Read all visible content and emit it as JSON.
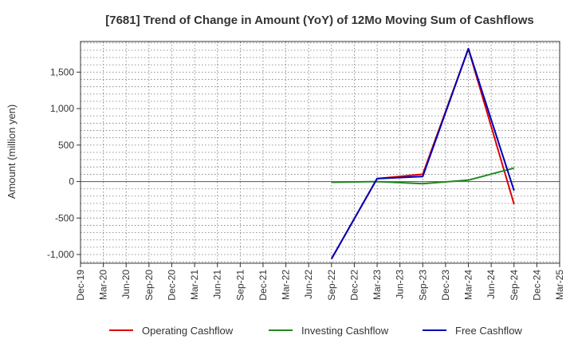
{
  "chart_data": {
    "type": "line",
    "title": "[7681]  Trend of Change in Amount (YoY) of 12Mo Moving Sum of Cashflows",
    "ylabel": "Amount (million yen)",
    "xlabel": "",
    "categories": [
      "Dec-19",
      "Mar-20",
      "Jun-20",
      "Sep-20",
      "Dec-20",
      "Mar-21",
      "Jun-21",
      "Sep-21",
      "Dec-21",
      "Mar-22",
      "Jun-22",
      "Sep-22",
      "Dec-22",
      "Mar-23",
      "Jun-23",
      "Sep-23",
      "Dec-23",
      "Mar-24",
      "Jun-24",
      "Sep-24",
      "Dec-24",
      "Mar-25"
    ],
    "ylim": [
      -1120,
      1920
    ],
    "yticks": [
      -1000,
      -500,
      0,
      500,
      1000,
      1500
    ],
    "ytick_labels": [
      "-1,000",
      "-500",
      "0",
      "500",
      "1,000",
      "1,500"
    ],
    "grid": true,
    "legend_position": "bottom",
    "series": [
      {
        "name": "Operating Cashflow",
        "color": "#dd0000",
        "values": [
          null,
          null,
          null,
          null,
          null,
          null,
          null,
          null,
          null,
          null,
          null,
          -1060,
          null,
          40,
          null,
          100,
          null,
          1820,
          null,
          -310,
          null,
          null
        ]
      },
      {
        "name": "Investing Cashflow",
        "color": "#228822",
        "values": [
          null,
          null,
          null,
          null,
          null,
          null,
          null,
          null,
          null,
          null,
          null,
          -10,
          null,
          0,
          null,
          -30,
          null,
          20,
          null,
          185,
          null,
          null
        ]
      },
      {
        "name": "Free Cashflow",
        "color": "#0000bb",
        "values": [
          null,
          null,
          null,
          null,
          null,
          null,
          null,
          null,
          null,
          null,
          null,
          -1060,
          null,
          40,
          null,
          70,
          null,
          1820,
          null,
          -125,
          null,
          null
        ]
      }
    ]
  }
}
